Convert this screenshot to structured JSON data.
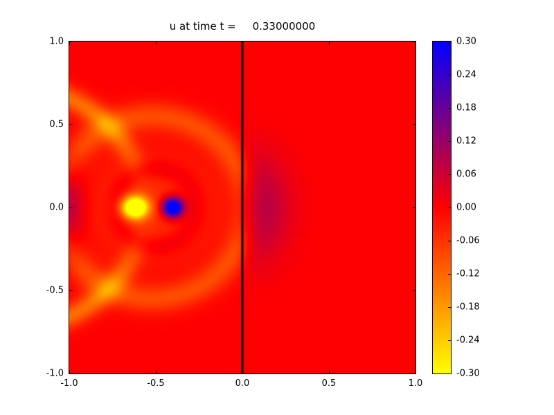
{
  "chart_data": {
    "type": "heatmap",
    "title": "u at time t =     0.33000000",
    "xlabel": "",
    "ylabel": "",
    "xlim": [
      -1.0,
      1.0
    ],
    "ylim": [
      -1.0,
      1.0
    ],
    "x_ticks": [
      "-1.0",
      "-0.5",
      "0.0",
      "0.5",
      "1.0"
    ],
    "y_ticks": [
      "1.0",
      "0.5",
      "0.0",
      "-0.5",
      "-1.0"
    ],
    "grid": false,
    "background_value": 0.0,
    "colorbar": {
      "vmin": -0.3,
      "vmax": 0.3,
      "ticks": [
        "0.30",
        "0.24",
        "0.18",
        "0.12",
        "0.06",
        "0.00",
        "-0.06",
        "-0.12",
        "-0.18",
        "-0.24",
        "-0.30"
      ],
      "colormap_stops": [
        {
          "value": -0.3,
          "color": "#ffff00"
        },
        {
          "value": 0.0,
          "color": "#ff0000"
        },
        {
          "value": 0.3,
          "color": "#0000ff"
        }
      ]
    },
    "annotations": [
      {
        "type": "vline",
        "x": 0.0,
        "color": "#000000",
        "linewidth": 3,
        "name": "interface-line"
      }
    ],
    "field_description": "2D wave field u(x,y): uniform background u=0 (red); dipole core near x=-0.5,y=0 with strong negative lobe (yellow, u<=-0.3) at (-0.62,0) and strong positive lobe (blue, u>=0.3) at (-0.40,0); broad slightly negative (orange) circular wavefront centered near (-0.52,0) of radius ~0.55; weak positive (purple) transmitted half-disk just right of the interface x=0 extending to x~0.4; reflected weak negative (orange) arcs and weak positive (purple) patch along the left boundary x=-1.",
    "features": [
      {
        "type": "gauss",
        "cx": -0.62,
        "cy": 0.0,
        "sx": 0.075,
        "sy": 0.065,
        "amp": -0.42
      },
      {
        "type": "gauss",
        "cx": -0.4,
        "cy": 0.0,
        "sx": 0.06,
        "sy": 0.06,
        "amp": 0.45
      },
      {
        "type": "gauss",
        "cx": -0.52,
        "cy": 0.0,
        "sx": 0.4,
        "sy": 0.34,
        "amp": -0.055
      },
      {
        "type": "ring",
        "cx": -0.52,
        "cy": 0.0,
        "r": 0.55,
        "sigma": 0.085,
        "amp": -0.085
      },
      {
        "type": "ring",
        "cx": -0.5,
        "cy": 0.0,
        "r": 0.23,
        "sigma": 0.06,
        "amp": 0.045
      },
      {
        "type": "gauss",
        "cx": 0.03,
        "cy": 0.0,
        "sx": 0.21,
        "sy": 0.3,
        "amp": 0.13,
        "half": "right"
      },
      {
        "type": "ring",
        "cx": -1.3,
        "cy": 0.0,
        "r": 0.72,
        "sigma": 0.07,
        "amp": -0.13,
        "yabs_min": 0.28
      },
      {
        "type": "gauss",
        "cx": -1.01,
        "cy": 0.0,
        "sx": 0.09,
        "sy": 0.27,
        "amp": 0.12
      }
    ]
  }
}
